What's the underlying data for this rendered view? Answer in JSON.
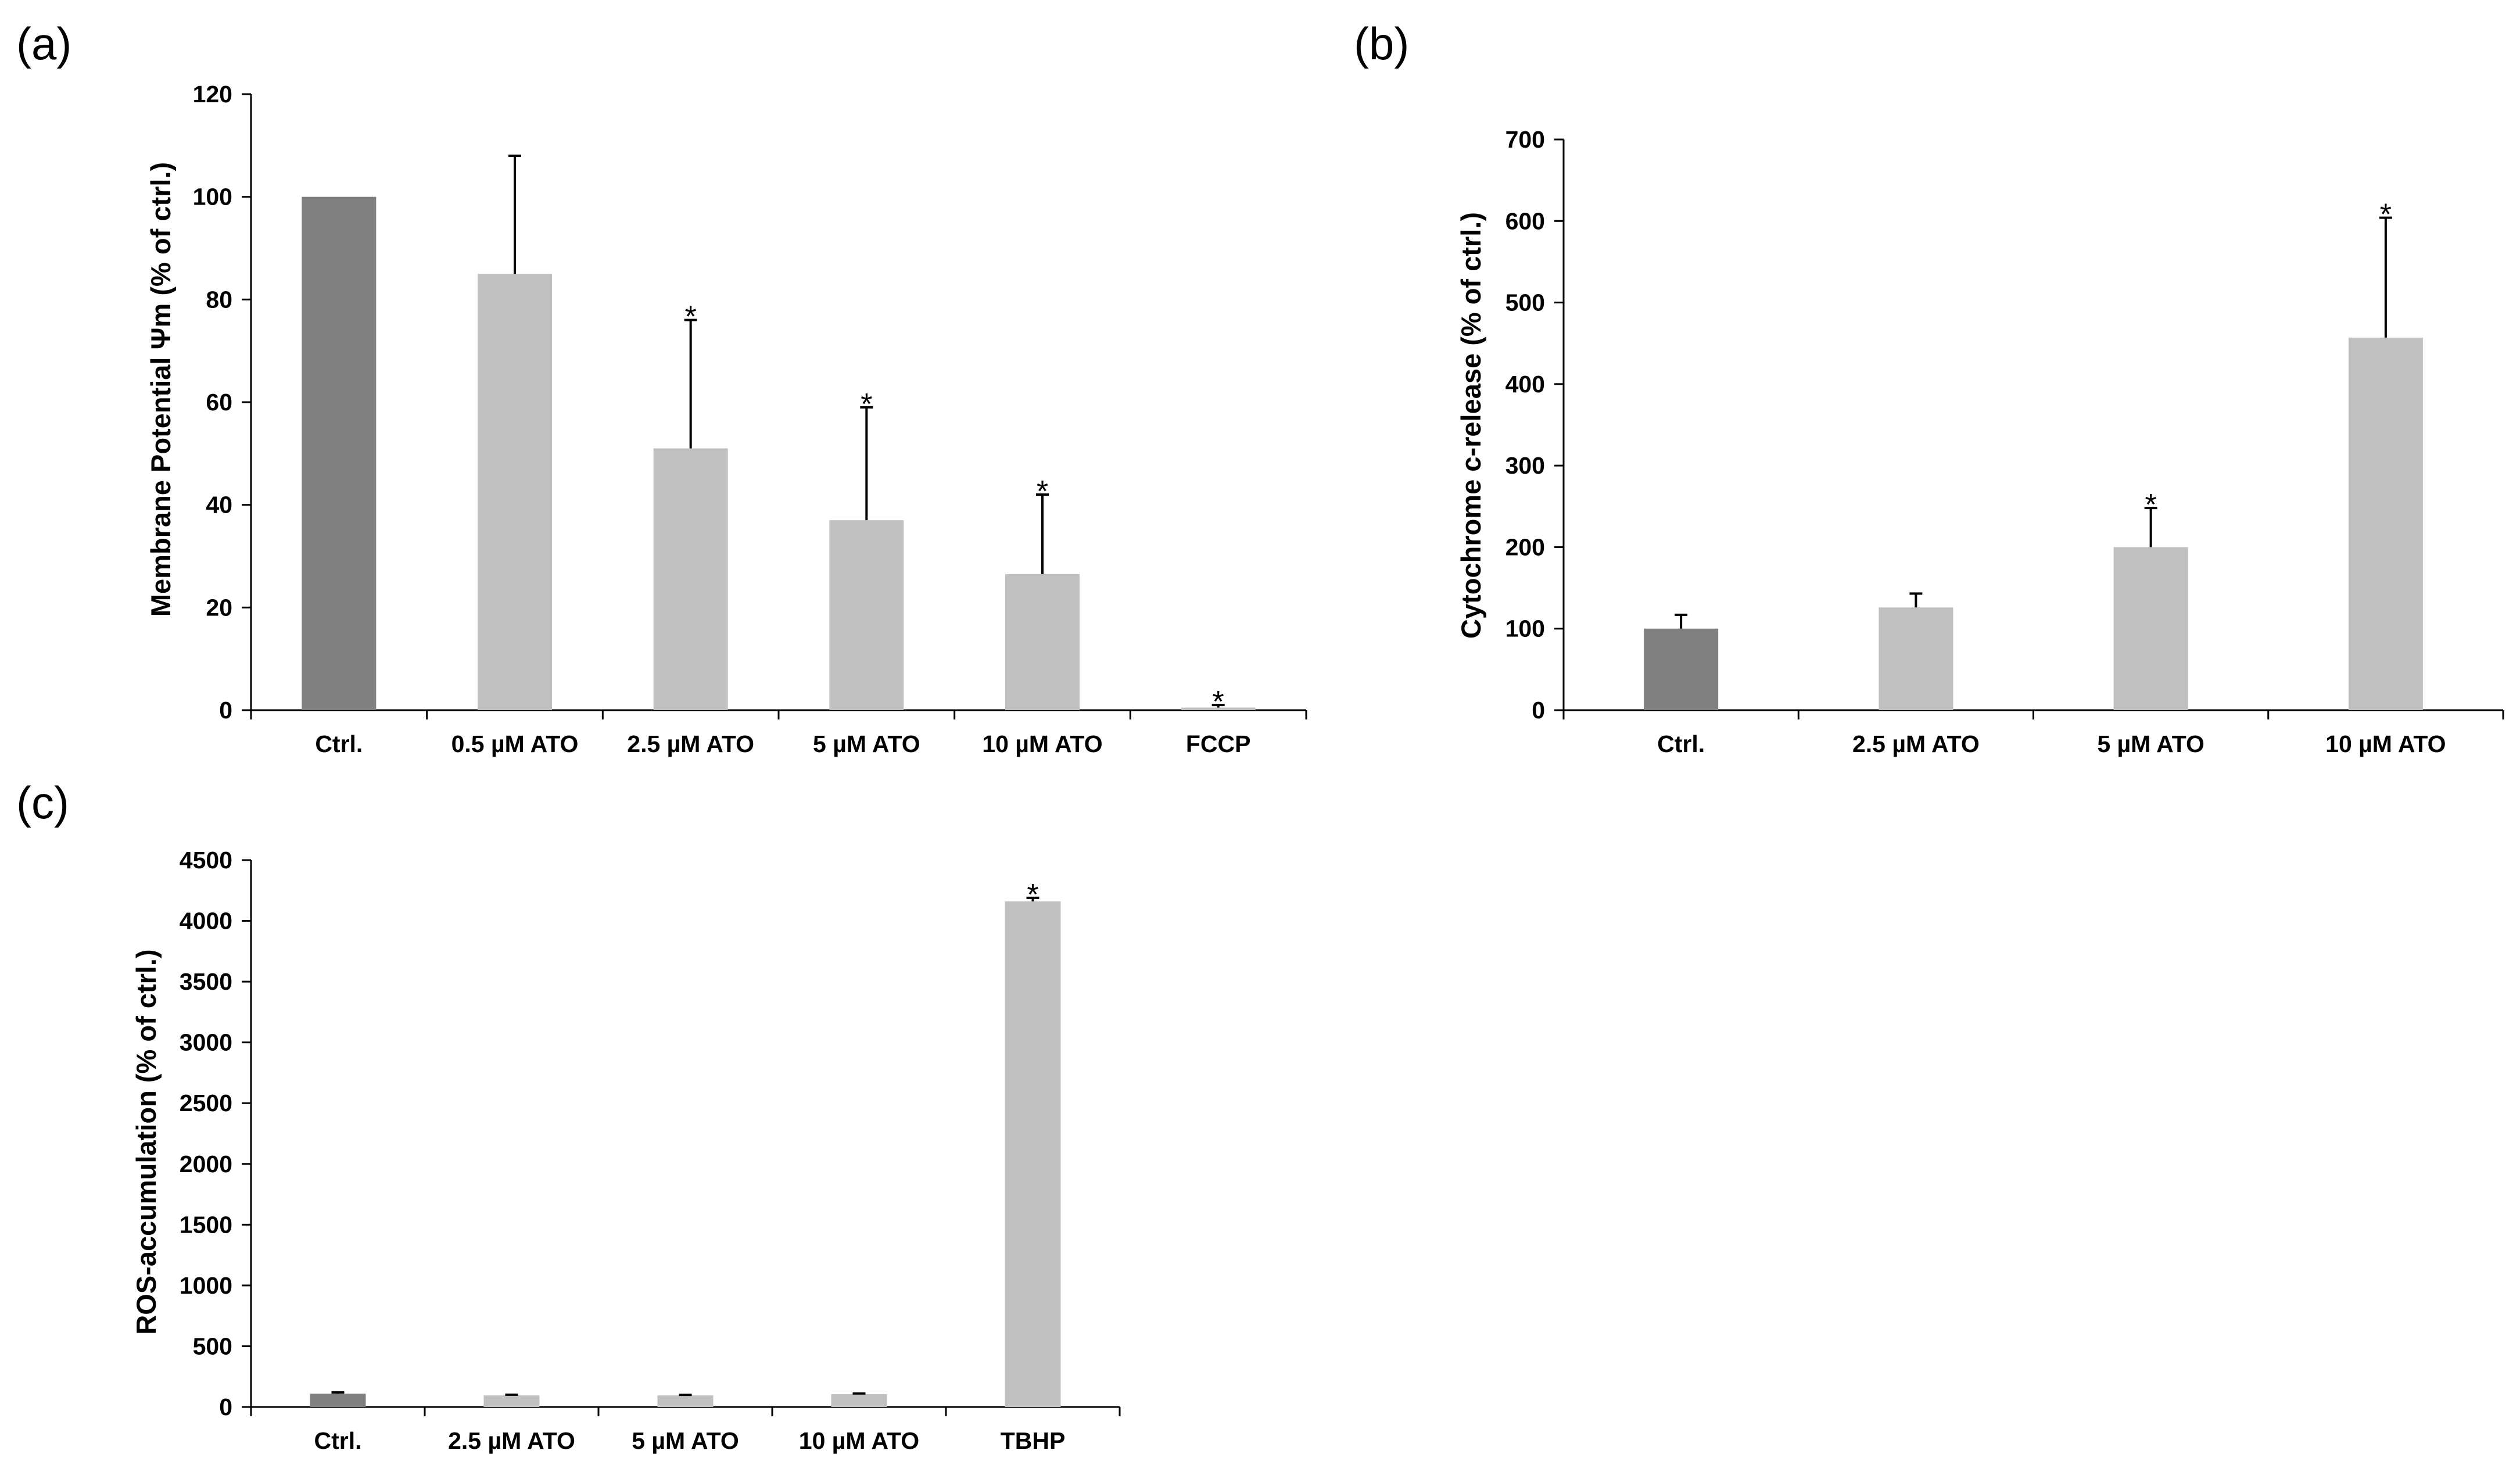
{
  "colors": {
    "ctrl_bar": "#808080",
    "treat_bar": "#c0c0c0",
    "axis": "#000000"
  },
  "chart_data": [
    {
      "panel": "(a)",
      "type": "bar",
      "ylabel": "Membrane Potential Ψm (% of ctrl.)",
      "ylim": [
        0,
        120
      ],
      "yticks": [
        0,
        20,
        40,
        60,
        80,
        100,
        120
      ],
      "categories": [
        "Ctrl.",
        "0.5 µM ATO",
        "2.5 µM ATO",
        "5 µM ATO",
        "10 µM ATO",
        "FCCP"
      ],
      "values": [
        100,
        85,
        51,
        37,
        26.5,
        0.5
      ],
      "errors": [
        0,
        23,
        25,
        22,
        15.5,
        0.5
      ],
      "significant": [
        false,
        false,
        true,
        true,
        true,
        true
      ],
      "marker": "*"
    },
    {
      "panel": "(b)",
      "type": "bar",
      "ylabel": "Cytochrome c-release (% of ctrl.)",
      "ylim": [
        0,
        700
      ],
      "yticks": [
        0,
        100,
        200,
        300,
        400,
        500,
        600,
        700
      ],
      "categories": [
        "Ctrl.",
        "2.5 µM ATO",
        "5 µM ATO",
        "10 µM ATO"
      ],
      "values": [
        100,
        126,
        200,
        457
      ],
      "errors": [
        17,
        17,
        48,
        147
      ],
      "significant": [
        false,
        false,
        true,
        true
      ],
      "marker": "*"
    },
    {
      "panel": "(c)",
      "type": "bar",
      "ylabel": "ROS-accumulation (% of ctrl.)",
      "ylim": [
        0,
        4500
      ],
      "yticks": [
        0,
        500,
        1000,
        1500,
        2000,
        2500,
        3000,
        3500,
        4000,
        4500
      ],
      "categories": [
        "Ctrl.",
        "2.5 µM ATO",
        "5 µM ATO",
        "10 µM ATO",
        "TBHP"
      ],
      "values": [
        110,
        95,
        95,
        105,
        4160
      ],
      "errors": [
        10,
        6,
        5,
        6,
        30
      ],
      "significant": [
        false,
        false,
        false,
        false,
        true
      ],
      "marker": "*"
    }
  ]
}
